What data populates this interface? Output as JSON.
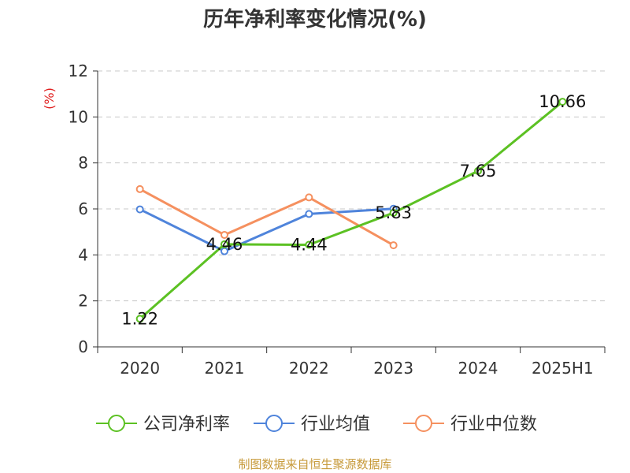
{
  "chart_data": {
    "type": "line",
    "title": "历年净利率变化情况(%)",
    "ylabel": "(%)",
    "xlabel": "",
    "categories": [
      "2020",
      "2021",
      "2022",
      "2023",
      "2024",
      "2025H1"
    ],
    "y_ticks": [
      "0",
      "2",
      "4",
      "6",
      "8",
      "10",
      "12"
    ],
    "ylim": [
      0,
      12
    ],
    "grid": "horizontal dashed",
    "legend_position": "bottom",
    "series": [
      {
        "name": "公司净利率",
        "color": "#5cc123",
        "values": [
          1.22,
          4.46,
          4.44,
          5.83,
          7.65,
          10.66
        ],
        "data_labels": [
          "1.22",
          "4.46",
          "4.44",
          "5.83",
          "7.65",
          "10.66"
        ]
      },
      {
        "name": "行业均值",
        "color": "#4f84db",
        "values": [
          5.98,
          4.16,
          5.78,
          6.01,
          null,
          null
        ]
      },
      {
        "name": "行业中位数",
        "color": "#f5905f",
        "values": [
          6.86,
          4.87,
          6.5,
          4.42,
          null,
          null
        ]
      }
    ]
  },
  "source": "制图数据来自恒生聚源数据库"
}
